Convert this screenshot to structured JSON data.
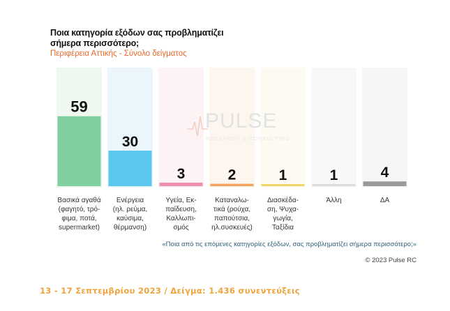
{
  "header": {
    "title_line1": "Ποια κατηγορία εξόδων σας προβληματίζει",
    "title_line2": "σήμερα περισσότερο;",
    "subtitle": "Περιφέρεια Αττικής - Σύνολο δείγματος"
  },
  "watermark": {
    "word": "PULSE",
    "tagline": "RESEARCH & CONSULTING"
  },
  "chart_data": {
    "type": "bar",
    "title": "Ποια κατηγορία εξόδων σας προβληματίζει σήμερα περισσότερο;",
    "subtitle": "Περιφέρεια Αττικής - Σύνολο δείγματος",
    "categories": [
      [
        "Βασικά αγαθά",
        "(φαγητό, τρό-",
        "φιμα, ποτά,",
        "supermarket)"
      ],
      [
        "Ενέργεια",
        "(ηλ. ρεύμα,",
        "καύσιμα,",
        "θέρμανση)"
      ],
      [
        "Υγεία, Εκ-",
        "παίδευση,",
        "Καλλωπι-",
        "σμός"
      ],
      [
        "Καταναλω-",
        "τικά (ρούχα,",
        "παπούτσια,",
        "ηλ.συσκευές)"
      ],
      [
        "Διασκέδα-",
        "ση, Ψυχα-",
        "γωγία,",
        "Ταξίδια"
      ],
      [
        "Άλλη"
      ],
      [
        "ΔΑ"
      ]
    ],
    "values": [
      59,
      30,
      3,
      2,
      1,
      1,
      4
    ],
    "colors": [
      "#7fcfa0",
      "#5bc6ee",
      "#ef8fb0",
      "#f4a25c",
      "#f1d66c",
      "#dcdcdc",
      "#9a9a9a"
    ],
    "track_colors": [
      "#eef7f0",
      "#eaf6fb",
      "#fdf3f5",
      "#fdf6ef",
      "#fdfbf1",
      "#f8f8f8",
      "#f6f6f6"
    ],
    "ylim": [
      0,
      100
    ],
    "grid": false,
    "legend": "none"
  },
  "footnotes": {
    "question": "«Ποια από τις επόμενες κατηγορίες εξόδων, σας προβληματίζει σήμερα περισσότερο;»",
    "copyright": "© 2023 Pulse RC",
    "fieldwork": "13 - 17  Σεπτεμβρίου  2023  /  Δείγμα:  1.436 συνεντεύξεις"
  }
}
